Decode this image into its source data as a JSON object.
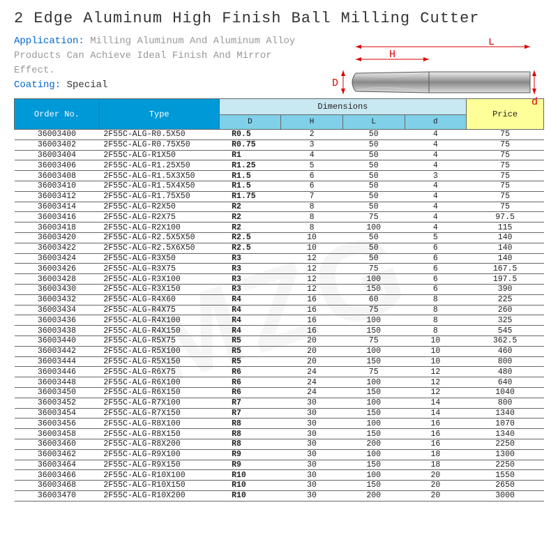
{
  "title": "2 Edge Aluminum High Finish Ball Milling Cutter",
  "application_label": "Application:",
  "application_text": "Milling Aluminum And Aluminum Alloy Products Can Achieve Ideal Finish And Mirror Effect.",
  "coating_label": "Coating:",
  "coating_value": "Special",
  "watermark": "MZG",
  "diagram_labels": {
    "L": "L",
    "H": "H",
    "D": "D",
    "d": "d"
  },
  "headers": {
    "order": "Order No.",
    "type": "Type",
    "dimensions": "Dimensions",
    "D": "D",
    "H": "H",
    "L": "L",
    "d": "d",
    "price": "Price"
  },
  "colors": {
    "header_main": "#0099d8",
    "header_sub": "#7fd0e8",
    "header_dim": "#c8e8f2",
    "price_bg": "#ffff99",
    "label_blue": "#0066cc",
    "muted": "#999999"
  },
  "rows": [
    {
      "order": "36003400",
      "type": "2F55C-ALG-R0.5X50",
      "D": "R0.5",
      "H": "2",
      "L": "50",
      "d": "4",
      "price": "75"
    },
    {
      "order": "36003402",
      "type": "2F55C-ALG-R0.75X50",
      "D": "R0.75",
      "H": "3",
      "L": "50",
      "d": "4",
      "price": "75"
    },
    {
      "order": "36003404",
      "type": "2F55C-ALG-R1X50",
      "D": "R1",
      "H": "4",
      "L": "50",
      "d": "4",
      "price": "75"
    },
    {
      "order": "36003406",
      "type": "2F55C-ALG-R1.25X50",
      "D": "R1.25",
      "H": "5",
      "L": "50",
      "d": "4",
      "price": "75"
    },
    {
      "order": "36003408",
      "type": "2F55C-ALG-R1.5X3X50",
      "D": "R1.5",
      "H": "6",
      "L": "50",
      "d": "3",
      "price": "75"
    },
    {
      "order": "36003410",
      "type": "2F55C-ALG-R1.5X4X50",
      "D": "R1.5",
      "H": "6",
      "L": "50",
      "d": "4",
      "price": "75"
    },
    {
      "order": "36003412",
      "type": "2F55C-ALG-R1.75X50",
      "D": "R1.75",
      "H": "7",
      "L": "50",
      "d": "4",
      "price": "75"
    },
    {
      "order": "36003414",
      "type": "2F55C-ALG-R2X50",
      "D": "R2",
      "H": "8",
      "L": "50",
      "d": "4",
      "price": "75"
    },
    {
      "order": "36003416",
      "type": "2F55C-ALG-R2X75",
      "D": "R2",
      "H": "8",
      "L": "75",
      "d": "4",
      "price": "97.5"
    },
    {
      "order": "36003418",
      "type": "2F55C-ALG-R2X100",
      "D": "R2",
      "H": "8",
      "L": "100",
      "d": "4",
      "price": "115"
    },
    {
      "order": "36003420",
      "type": "2F55C-ALG-R2.5X5X50",
      "D": "R2.5",
      "H": "10",
      "L": "50",
      "d": "5",
      "price": "140"
    },
    {
      "order": "36003422",
      "type": "2F55C-ALG-R2.5X6X50",
      "D": "R2.5",
      "H": "10",
      "L": "50",
      "d": "6",
      "price": "140"
    },
    {
      "order": "36003424",
      "type": "2F55C-ALG-R3X50",
      "D": "R3",
      "H": "12",
      "L": "50",
      "d": "6",
      "price": "140"
    },
    {
      "order": "36003426",
      "type": "2F55C-ALG-R3X75",
      "D": "R3",
      "H": "12",
      "L": "75",
      "d": "6",
      "price": "167.5"
    },
    {
      "order": "36003428",
      "type": "2F55C-ALG-R3X100",
      "D": "R3",
      "H": "12",
      "L": "100",
      "d": "6",
      "price": "197.5"
    },
    {
      "order": "36003430",
      "type": "2F55C-ALG-R3X150",
      "D": "R3",
      "H": "12",
      "L": "150",
      "d": "6",
      "price": "390"
    },
    {
      "order": "36003432",
      "type": "2F55C-ALG-R4X60",
      "D": "R4",
      "H": "16",
      "L": "60",
      "d": "8",
      "price": "225"
    },
    {
      "order": "36003434",
      "type": "2F55C-ALG-R4X75",
      "D": "R4",
      "H": "16",
      "L": "75",
      "d": "8",
      "price": "260"
    },
    {
      "order": "36003436",
      "type": "2F55C-ALG-R4X100",
      "D": "R4",
      "H": "16",
      "L": "100",
      "d": "8",
      "price": "325"
    },
    {
      "order": "36003438",
      "type": "2F55C-ALG-R4X150",
      "D": "R4",
      "H": "16",
      "L": "150",
      "d": "8",
      "price": "545"
    },
    {
      "order": "36003440",
      "type": "2F55C-ALG-R5X75",
      "D": "R5",
      "H": "20",
      "L": "75",
      "d": "10",
      "price": "362.5"
    },
    {
      "order": "36003442",
      "type": "2F55C-ALG-R5X100",
      "D": "R5",
      "H": "20",
      "L": "100",
      "d": "10",
      "price": "460"
    },
    {
      "order": "36003444",
      "type": "2F55C-ALG-R5X150",
      "D": "R5",
      "H": "20",
      "L": "150",
      "d": "10",
      "price": "800"
    },
    {
      "order": "36003446",
      "type": "2F55C-ALG-R6X75",
      "D": "R6",
      "H": "24",
      "L": "75",
      "d": "12",
      "price": "480"
    },
    {
      "order": "36003448",
      "type": "2F55C-ALG-R6X100",
      "D": "R6",
      "H": "24",
      "L": "100",
      "d": "12",
      "price": "640"
    },
    {
      "order": "36003450",
      "type": "2F55C-ALG-R6X150",
      "D": "R6",
      "H": "24",
      "L": "150",
      "d": "12",
      "price": "1040"
    },
    {
      "order": "36003452",
      "type": "2F55C-ALG-R7X100",
      "D": "R7",
      "H": "30",
      "L": "100",
      "d": "14",
      "price": "800"
    },
    {
      "order": "36003454",
      "type": "2F55C-ALG-R7X150",
      "D": "R7",
      "H": "30",
      "L": "150",
      "d": "14",
      "price": "1340"
    },
    {
      "order": "36003456",
      "type": "2F55C-ALG-R8X100",
      "D": "R8",
      "H": "30",
      "L": "100",
      "d": "16",
      "price": "1070"
    },
    {
      "order": "36003458",
      "type": "2F55C-ALG-R8X150",
      "D": "R8",
      "H": "30",
      "L": "150",
      "d": "16",
      "price": "1340"
    },
    {
      "order": "36003460",
      "type": "2F55C-ALG-R8X200",
      "D": "R8",
      "H": "30",
      "L": "200",
      "d": "16",
      "price": "2250"
    },
    {
      "order": "36003462",
      "type": "2F55C-ALG-R9X100",
      "D": "R9",
      "H": "30",
      "L": "100",
      "d": "18",
      "price": "1300"
    },
    {
      "order": "36003464",
      "type": "2F55C-ALG-R9X150",
      "D": "R9",
      "H": "30",
      "L": "150",
      "d": "18",
      "price": "2250"
    },
    {
      "order": "36003466",
      "type": "2F55C-ALG-R10X100",
      "D": "R10",
      "H": "30",
      "L": "100",
      "d": "20",
      "price": "1550"
    },
    {
      "order": "36003468",
      "type": "2F55C-ALG-R10X150",
      "D": "R10",
      "H": "30",
      "L": "150",
      "d": "20",
      "price": "2650"
    },
    {
      "order": "36003470",
      "type": "2F55C-ALG-R10X200",
      "D": "R10",
      "H": "30",
      "L": "200",
      "d": "20",
      "price": "3000"
    }
  ]
}
